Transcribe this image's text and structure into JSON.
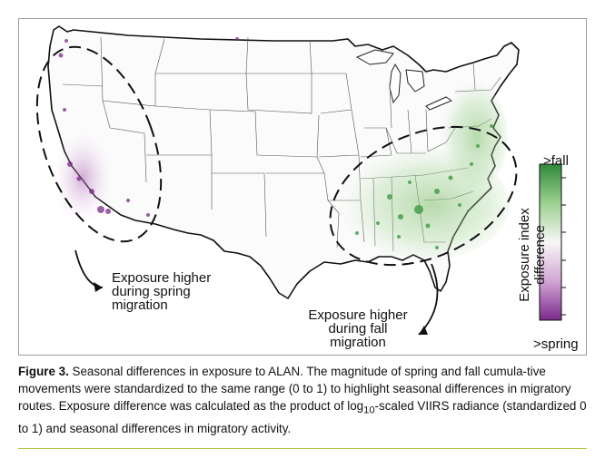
{
  "figure": {
    "map_title": "",
    "annotations": {
      "spring": [
        "Exposure higher",
        "during spring",
        "migration"
      ],
      "fall": [
        "Exposure higher",
        "during fall",
        "migration"
      ]
    },
    "legend": {
      "top_label": ">fall",
      "bottom_label": ">spring",
      "title_lines": [
        "Exposure index",
        "difference"
      ],
      "colors": {
        "fall": "#2f8a3a",
        "neutral": "#f7f7f7",
        "spring": "#7b2a8a"
      }
    }
  },
  "caption": {
    "label": "Figure 3.",
    "text": " Seasonal differences in exposure to ALAN. The magnitude of spring and fall cumula-tive movements were standardized to the same range (0 to 1) to highlight seasonal differences in migratory routes. Exposure difference was calculated as the product of log",
    "subscript": "10",
    "text_end": "-scaled VIIRS radiance (standardized 0 to 1) and seasonal differences in migratory activity."
  }
}
